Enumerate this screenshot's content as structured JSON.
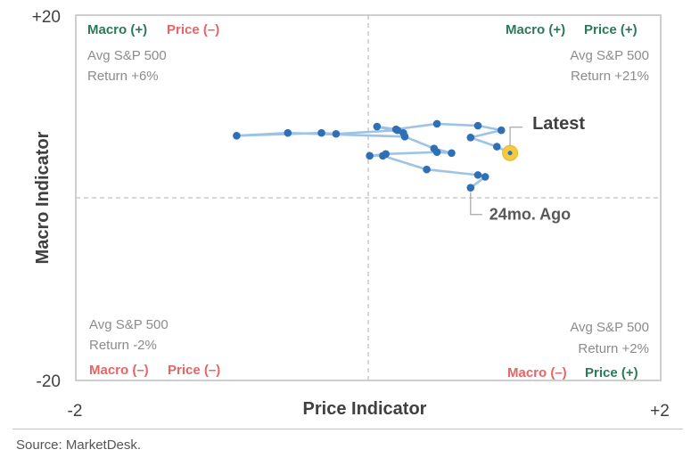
{
  "chart_data": {
    "type": "scatter",
    "xlabel": "Price Indicator",
    "ylabel": "Macro Indicator",
    "xlim": [
      -2,
      2
    ],
    "ylim": [
      -20,
      20
    ],
    "x_tick_labels": [
      "-2",
      "+2"
    ],
    "y_tick_labels": [
      "+20",
      "-20"
    ],
    "grid": false,
    "quadrants": {
      "top_left": {
        "macro": "Macro (+)",
        "price": "Price (–)",
        "line1": "Avg S&P 500",
        "line2": "Return +6%"
      },
      "top_right": {
        "macro": "Macro (+)",
        "price": "Price (+)",
        "line1": "Avg S&P 500",
        "line2": "Return +21%"
      },
      "bottom_left": {
        "macro": "Macro (–)",
        "price": "Price (–)",
        "line1": "Avg S&P 500",
        "line2": "Return -2%"
      },
      "bottom_right": {
        "macro": "Macro (–)",
        "price": "Price (+)",
        "line1": "Avg S&P 500",
        "line2": "Return +2%"
      }
    },
    "annotations": {
      "latest": "Latest",
      "start": "24mo. Ago"
    },
    "path": [
      {
        "x": 0.7,
        "y": 1.1
      },
      {
        "x": 0.8,
        "y": 2.3
      },
      {
        "x": 0.75,
        "y": 2.5
      },
      {
        "x": 0.4,
        "y": 3.1
      },
      {
        "x": 0.1,
        "y": 4.6
      },
      {
        "x": 0.01,
        "y": 4.6
      },
      {
        "x": 0.12,
        "y": 4.8
      },
      {
        "x": 0.47,
        "y": 5.0
      },
      {
        "x": 0.57,
        "y": 4.9
      },
      {
        "x": 0.45,
        "y": 5.4
      },
      {
        "x": 0.25,
        "y": 6.7
      },
      {
        "x": -0.55,
        "y": 7.1
      },
      {
        "x": -0.9,
        "y": 6.8
      },
      {
        "x": -0.32,
        "y": 7.1
      },
      {
        "x": -0.22,
        "y": 7.0
      },
      {
        "x": 0.2,
        "y": 7.4
      },
      {
        "x": 0.24,
        "y": 7.1
      },
      {
        "x": 0.06,
        "y": 7.8
      },
      {
        "x": 0.19,
        "y": 7.5
      },
      {
        "x": 0.47,
        "y": 8.1
      },
      {
        "x": 0.75,
        "y": 7.9
      },
      {
        "x": 0.91,
        "y": 7.4
      },
      {
        "x": 0.7,
        "y": 6.6
      },
      {
        "x": 0.88,
        "y": 5.6
      },
      {
        "x": 0.97,
        "y": 4.9
      }
    ],
    "colors": {
      "line": "#9dc3e6",
      "point": "#2e6fb5",
      "latest": "#f5c842",
      "positive": "#2a7a5a",
      "negative": "#e86464",
      "axis": "#bfbfbf",
      "text_gray": "#8c8c8c",
      "dark": "#404040"
    }
  },
  "source": "Source: MarketDesk."
}
